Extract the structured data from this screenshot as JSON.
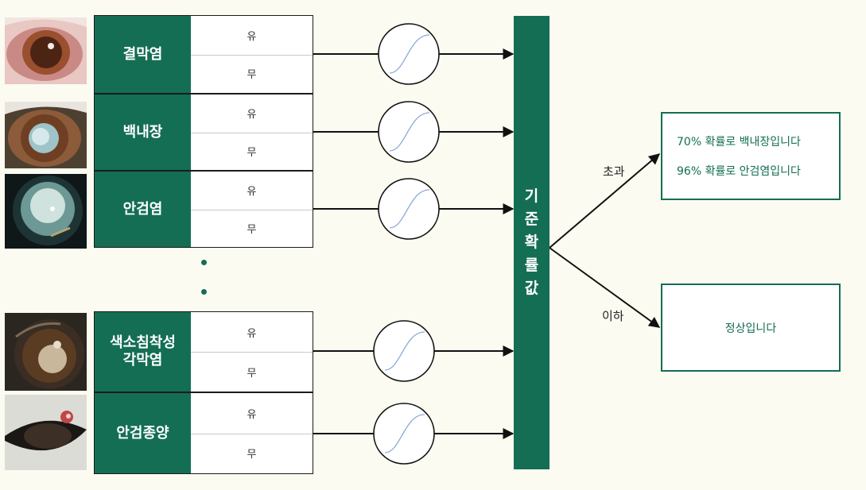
{
  "diseases": [
    {
      "name": "결막염",
      "yes": "유",
      "no": "무"
    },
    {
      "name": "백내장",
      "yes": "유",
      "no": "무"
    },
    {
      "name": "안검염",
      "yes": "유",
      "no": "무"
    },
    {
      "name": "색소침착성\n각막염",
      "yes": "유",
      "no": "무"
    },
    {
      "name": "안검종양",
      "yes": "유",
      "no": "무"
    }
  ],
  "threshold_label": "기준확률값",
  "branches": {
    "over": "초과",
    "under": "이하"
  },
  "results": {
    "over_lines": [
      "70% 확률로 백내장입니다",
      "96% 확률로 안검염입니다"
    ],
    "under_line": "정상입니다"
  },
  "colors": {
    "accent": "#136e54",
    "background": "#fbfbf1",
    "curve": "#8aa9d8"
  },
  "icons": [
    "sigmoid-icon",
    "eye-photo"
  ]
}
